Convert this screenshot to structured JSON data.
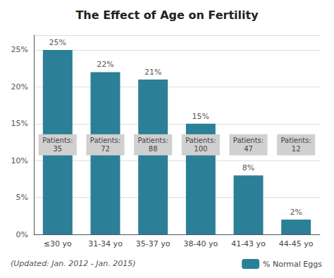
{
  "chart_data": {
    "type": "bar",
    "title": "The Effect of Age on Fertility",
    "subtitle": "(Updated: Jan. 2012 - Jan. 2015)",
    "categories": [
      "≤30 yo",
      "31-34 yo",
      "35-37 yo",
      "38-40 yo",
      "41-43 yo",
      "44-45 yo"
    ],
    "series": [
      {
        "name": "% Normal Eggs",
        "color": "#2b7f96",
        "values": [
          25,
          22,
          21,
          15,
          8,
          2
        ],
        "value_labels": [
          "25%",
          "22%",
          "21%",
          "15%",
          "8%",
          "2%"
        ]
      }
    ],
    "annotations": [
      "Patients:\n35",
      "Patients:\n72",
      "Patients:\n88",
      "Patients:\n100",
      "Patients:\n47",
      "Patients:\n12"
    ],
    "ylim": [
      0,
      27
    ],
    "yticks": [
      {
        "value": 0,
        "label": "0%"
      },
      {
        "value": 5,
        "label": "5%"
      },
      {
        "value": 10,
        "label": "10%"
      },
      {
        "value": 15,
        "label": "15%"
      },
      {
        "value": 20,
        "label": "20%"
      },
      {
        "value": 25,
        "label": "25%"
      }
    ],
    "grid": true,
    "data_labels": true,
    "legend": "lower right"
  }
}
